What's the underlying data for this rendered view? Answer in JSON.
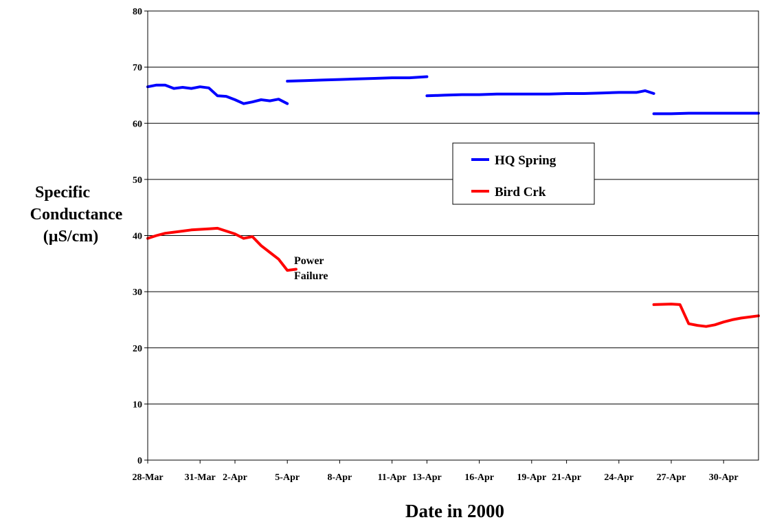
{
  "chart_data": {
    "type": "line",
    "title": "",
    "xlabel": "Date in 2000",
    "ylabel_lines": [
      "Specific",
      "Conductance",
      "(µS/cm)"
    ],
    "ylim": [
      0,
      80
    ],
    "yticks": [
      0,
      10,
      20,
      30,
      40,
      50,
      60,
      70,
      80
    ],
    "xlim": [
      "2000-03-28",
      "2000-05-02"
    ],
    "xticks": [
      {
        "date": "2000-03-28",
        "label": "28-Mar"
      },
      {
        "date": "2000-03-31",
        "label": "31-Mar"
      },
      {
        "date": "2000-04-02",
        "label": "2-Apr"
      },
      {
        "date": "2000-04-05",
        "label": "5-Apr"
      },
      {
        "date": "2000-04-08",
        "label": "8-Apr"
      },
      {
        "date": "2000-04-11",
        "label": "11-Apr"
      },
      {
        "date": "2000-04-13",
        "label": "13-Apr"
      },
      {
        "date": "2000-04-16",
        "label": "16-Apr"
      },
      {
        "date": "2000-04-19",
        "label": "19-Apr"
      },
      {
        "date": "2000-04-21",
        "label": "21-Apr"
      },
      {
        "date": "2000-04-24",
        "label": "24-Apr"
      },
      {
        "date": "2000-04-27",
        "label": "27-Apr"
      },
      {
        "date": "2000-04-30",
        "label": "30-Apr"
      }
    ],
    "grid": "horizontal",
    "legend_position": "upper-right",
    "annotations": [
      {
        "lines": [
          "Power",
          "Failure"
        ],
        "date": "2000-04-05",
        "y": 34.5
      }
    ],
    "series": [
      {
        "name": "HQ Spring",
        "color": "#0000ff",
        "segments": [
          [
            [
              "2000-03-28",
              66.5
            ],
            [
              "2000-03-28T12:00",
              66.8
            ],
            [
              "2000-03-29",
              66.8
            ],
            [
              "2000-03-29T12:00",
              66.2
            ],
            [
              "2000-03-30",
              66.4
            ],
            [
              "2000-03-30T12:00",
              66.2
            ],
            [
              "2000-03-31",
              66.5
            ],
            [
              "2000-03-31T12:00",
              66.3
            ],
            [
              "2000-04-01",
              64.9
            ],
            [
              "2000-04-01T12:00",
              64.8
            ],
            [
              "2000-04-02",
              64.2
            ],
            [
              "2000-04-02T12:00",
              63.5
            ],
            [
              "2000-04-03",
              63.8
            ],
            [
              "2000-04-03T12:00",
              64.2
            ],
            [
              "2000-04-04",
              64.0
            ],
            [
              "2000-04-04T12:00",
              64.3
            ],
            [
              "2000-04-05",
              63.5
            ]
          ],
          [
            [
              "2000-04-05",
              67.5
            ],
            [
              "2000-04-06",
              67.6
            ],
            [
              "2000-04-07",
              67.7
            ],
            [
              "2000-04-08",
              67.8
            ],
            [
              "2000-04-09",
              67.9
            ],
            [
              "2000-04-10",
              68.0
            ],
            [
              "2000-04-11",
              68.1
            ],
            [
              "2000-04-12",
              68.1
            ],
            [
              "2000-04-13",
              68.3
            ]
          ],
          [
            [
              "2000-04-13",
              64.9
            ],
            [
              "2000-04-14",
              65.0
            ],
            [
              "2000-04-15",
              65.1
            ],
            [
              "2000-04-16",
              65.1
            ],
            [
              "2000-04-17",
              65.2
            ],
            [
              "2000-04-18",
              65.2
            ],
            [
              "2000-04-19",
              65.2
            ],
            [
              "2000-04-20",
              65.2
            ],
            [
              "2000-04-21",
              65.3
            ],
            [
              "2000-04-22",
              65.3
            ],
            [
              "2000-04-23",
              65.4
            ],
            [
              "2000-04-24",
              65.5
            ],
            [
              "2000-04-25",
              65.5
            ],
            [
              "2000-04-25T12:00",
              65.8
            ],
            [
              "2000-04-26",
              65.3
            ]
          ],
          [
            [
              "2000-04-26",
              61.7
            ],
            [
              "2000-04-27",
              61.7
            ],
            [
              "2000-04-28",
              61.8
            ],
            [
              "2000-04-29",
              61.8
            ],
            [
              "2000-04-30",
              61.8
            ],
            [
              "2000-05-01",
              61.8
            ],
            [
              "2000-05-02",
              61.8
            ]
          ]
        ]
      },
      {
        "name": "Bird Crk",
        "color": "#ff0000",
        "segments": [
          [
            [
              "2000-03-28",
              39.5
            ],
            [
              "2000-03-28T12:00",
              40.0
            ],
            [
              "2000-03-29",
              40.4
            ],
            [
              "2000-03-29T12:00",
              40.6
            ],
            [
              "2000-03-30",
              40.8
            ],
            [
              "2000-03-30T12:00",
              41.0
            ],
            [
              "2000-03-31",
              41.1
            ],
            [
              "2000-03-31T12:00",
              41.2
            ],
            [
              "2000-04-01",
              41.3
            ],
            [
              "2000-04-01T12:00",
              40.8
            ],
            [
              "2000-04-02",
              40.3
            ],
            [
              "2000-04-02T12:00",
              39.5
            ],
            [
              "2000-04-03",
              39.8
            ],
            [
              "2000-04-03T12:00",
              38.2
            ],
            [
              "2000-04-04",
              37.0
            ],
            [
              "2000-04-04T12:00",
              35.8
            ],
            [
              "2000-04-05",
              33.8
            ],
            [
              "2000-04-05T12:00",
              34.0
            ]
          ],
          [
            [
              "2000-04-26",
              27.7
            ],
            [
              "2000-04-27",
              27.8
            ],
            [
              "2000-04-27T12:00",
              27.7
            ],
            [
              "2000-04-28",
              24.3
            ],
            [
              "2000-04-28T12:00",
              24.0
            ],
            [
              "2000-04-29",
              23.8
            ],
            [
              "2000-04-29T12:00",
              24.1
            ],
            [
              "2000-04-30",
              24.6
            ],
            [
              "2000-04-30T12:00",
              25.0
            ],
            [
              "2000-05-01",
              25.3
            ],
            [
              "2000-05-02",
              25.7
            ]
          ]
        ]
      }
    ]
  }
}
